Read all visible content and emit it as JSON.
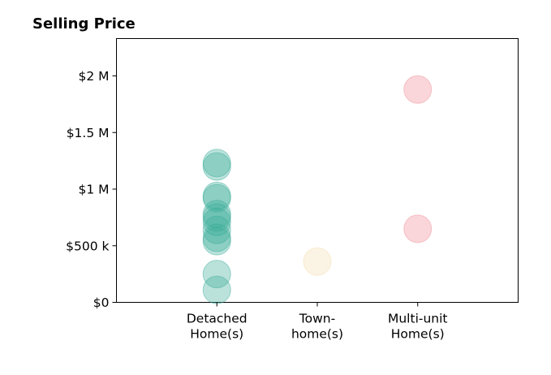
{
  "chart_data": {
    "type": "scatter",
    "title": "Selling Price",
    "xlabel": "",
    "ylabel": "",
    "categories": [
      [
        "Detached",
        "Home(s)"
      ],
      [
        "Town-",
        "home(s)"
      ],
      [
        "Multi-unit",
        "Home(s)"
      ]
    ],
    "xlim": [
      -1,
      3
    ],
    "ylim": [
      0,
      2330000
    ],
    "yticks": [
      {
        "value": 0,
        "label": "$0"
      },
      {
        "value": 500000,
        "label": "$500 k"
      },
      {
        "value": 1000000,
        "label": "$1 M"
      },
      {
        "value": 1500000,
        "label": "$1.5 M"
      },
      {
        "value": 2000000,
        "label": "$2 M"
      }
    ],
    "grid": false,
    "legend": "none",
    "series": [
      {
        "category_index": 0,
        "color": "#3aab98",
        "values": [
          110000,
          250000,
          540000,
          570000,
          640000,
          710000,
          750000,
          780000,
          920000,
          940000,
          1200000,
          1230000
        ]
      },
      {
        "category_index": 1,
        "color": "#f3dcae",
        "values": [
          360000
        ]
      },
      {
        "category_index": 2,
        "color": "#f08a94",
        "values": [
          650000,
          1880000
        ]
      }
    ]
  }
}
